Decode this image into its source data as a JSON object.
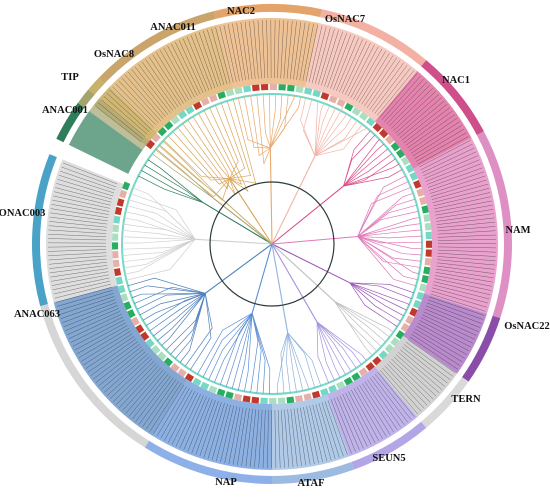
{
  "figure": {
    "background": "#ffffff",
    "center_ring_color": "#2e3a3a",
    "marker_palette": [
      "#c0392b",
      "#27ae60",
      "#76d7c4",
      "#e6b0aa",
      "#a9dfbf"
    ]
  },
  "clades": [
    {
      "label": "NAC2",
      "color": "#e8a86a"
    },
    {
      "label": "OsNAC7",
      "color": "#f4b3a6"
    },
    {
      "label": "NAC1",
      "color": "#d94f8a"
    },
    {
      "label": "NAM",
      "color": "#e07ab8"
    },
    {
      "label": "OsNAC22",
      "color": "#9b59b6"
    },
    {
      "label": "TERN",
      "color": "#bfbfbf"
    },
    {
      "label": "SEUN5",
      "color": "#a593e0"
    },
    {
      "label": "ATAF",
      "color": "#8fb3dd"
    },
    {
      "label": "NAP",
      "color": "#5b8ed6"
    },
    {
      "label": "ANAC063",
      "color": "#4f81bd"
    },
    {
      "label": "ONAC003",
      "color": "#d0d0d0"
    },
    {
      "label": "ANAC001",
      "color": "#2e7d5b"
    },
    {
      "label": "TIP",
      "color": "#a3a36e"
    },
    {
      "label": "OsNAC8",
      "color": "#c8b26a"
    },
    {
      "label": "ANAC011",
      "color": "#d9a65a"
    }
  ]
}
